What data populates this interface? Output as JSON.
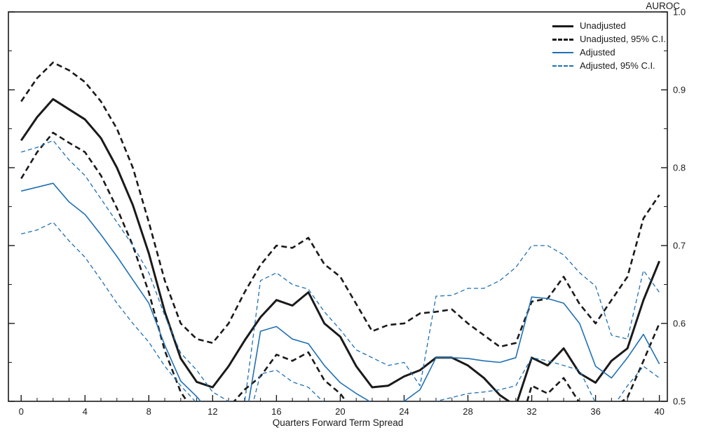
{
  "chart_data": {
    "type": "line",
    "title": "",
    "ylabel": "AUROC",
    "xlabel": "Quarters Forward Term Spread",
    "xlim": [
      -0.8,
      40.5
    ],
    "ylim": [
      0.5,
      1.0
    ],
    "grid": false,
    "legend_position": "top-right-inside",
    "axis_color": "#1a1a1a",
    "x_ticks_major": [
      0,
      4,
      8,
      12,
      16,
      20,
      24,
      28,
      32,
      36,
      40
    ],
    "x_tick_labels": [
      "0",
      "4",
      "8",
      "12",
      "16",
      "20",
      "24",
      "28",
      "32",
      "36",
      "40"
    ],
    "x_tick_step_minor": 1,
    "y_ticks_major": [
      0.5,
      0.6,
      0.7,
      0.8,
      0.9,
      1.0
    ],
    "y_tick_labels": [
      "0.5",
      "0.6",
      "0.7",
      "0.8",
      "0.9",
      "1.0"
    ],
    "y_ticks_minor": [
      0.55,
      0.65,
      0.75,
      0.85,
      0.95
    ],
    "x": [
      0,
      1,
      2,
      3,
      4,
      5,
      6,
      7,
      8,
      9,
      10,
      11,
      12,
      13,
      14,
      15,
      16,
      17,
      18,
      19,
      20,
      21,
      22,
      23,
      24,
      25,
      26,
      27,
      28,
      29,
      30,
      31,
      32,
      33,
      34,
      35,
      36,
      37,
      38,
      39,
      40
    ],
    "series": [
      {
        "name": "Unadjusted",
        "color": "#1a1a1a",
        "width": 3,
        "dash": null,
        "values": [
          0.835,
          0.865,
          0.888,
          0.875,
          0.862,
          0.838,
          0.8,
          0.752,
          0.69,
          0.615,
          0.555,
          0.525,
          0.518,
          0.545,
          0.578,
          0.608,
          0.63,
          0.623,
          0.64,
          0.6,
          0.583,
          0.545,
          0.518,
          0.52,
          0.532,
          0.54,
          0.556,
          0.556,
          0.546,
          0.53,
          0.508,
          0.494,
          0.556,
          0.546,
          0.568,
          0.536,
          0.524,
          0.552,
          0.568,
          0.63,
          0.68
        ]
      },
      {
        "name": "Unadjusted 95% C.I. upper",
        "color": "#1a1a1a",
        "width": 2.6,
        "dash": "8 5",
        "values": [
          0.885,
          0.915,
          0.935,
          0.925,
          0.91,
          0.885,
          0.85,
          0.8,
          0.73,
          0.655,
          0.6,
          0.58,
          0.575,
          0.6,
          0.64,
          0.675,
          0.7,
          0.697,
          0.71,
          0.676,
          0.66,
          0.625,
          0.59,
          0.598,
          0.6,
          0.613,
          0.615,
          0.618,
          0.6,
          0.585,
          0.57,
          0.575,
          0.628,
          0.632,
          0.66,
          0.625,
          0.6,
          0.63,
          0.66,
          0.735,
          0.765
        ]
      },
      {
        "name": "Unadjusted 95% C.I. lower",
        "color": "#1a1a1a",
        "width": 2.6,
        "dash": "8 5",
        "values": [
          0.786,
          0.82,
          0.845,
          0.832,
          0.82,
          0.79,
          0.748,
          0.7,
          0.64,
          0.565,
          0.512,
          0.482,
          0.47,
          0.492,
          0.515,
          0.532,
          0.56,
          0.552,
          0.563,
          0.527,
          0.51,
          0.482,
          0.462,
          0.463,
          0.47,
          0.48,
          0.492,
          0.492,
          0.483,
          0.47,
          0.458,
          0.45,
          0.52,
          0.51,
          0.53,
          0.498,
          0.47,
          0.49,
          0.505,
          0.552,
          0.6
        ]
      },
      {
        "name": "Adjusted",
        "color": "#2070b4",
        "width": 1.6,
        "dash": null,
        "values": [
          0.77,
          0.775,
          0.78,
          0.756,
          0.74,
          0.714,
          0.686,
          0.656,
          0.626,
          0.572,
          0.526,
          0.506,
          0.482,
          0.47,
          0.468,
          0.59,
          0.596,
          0.58,
          0.574,
          0.546,
          0.524,
          0.51,
          0.498,
          0.49,
          0.5,
          0.515,
          0.556,
          0.556,
          0.555,
          0.552,
          0.55,
          0.556,
          0.634,
          0.632,
          0.626,
          0.6,
          0.545,
          0.53,
          0.556,
          0.586,
          0.548
        ]
      },
      {
        "name": "Adjusted 95% C.I. upper",
        "color": "#2070b4",
        "width": 1.3,
        "dash": "6 4",
        "values": [
          0.82,
          0.826,
          0.835,
          0.81,
          0.79,
          0.76,
          0.73,
          0.7,
          0.665,
          0.61,
          0.562,
          0.54,
          0.512,
          0.5,
          0.498,
          0.655,
          0.665,
          0.65,
          0.644,
          0.615,
          0.592,
          0.566,
          0.556,
          0.546,
          0.55,
          0.52,
          0.635,
          0.636,
          0.645,
          0.645,
          0.655,
          0.672,
          0.7,
          0.7,
          0.688,
          0.665,
          0.648,
          0.585,
          0.58,
          0.668,
          0.64
        ]
      },
      {
        "name": "Adjusted 95% C.I. lower",
        "color": "#2070b4",
        "width": 1.3,
        "dash": "6 4",
        "values": [
          0.715,
          0.72,
          0.73,
          0.706,
          0.685,
          0.656,
          0.626,
          0.6,
          0.576,
          0.545,
          0.52,
          0.498,
          0.47,
          0.458,
          0.456,
          0.535,
          0.54,
          0.525,
          0.518,
          0.498,
          0.486,
          0.475,
          0.465,
          0.458,
          0.462,
          0.47,
          0.5,
          0.505,
          0.51,
          0.512,
          0.515,
          0.52,
          0.556,
          0.552,
          0.546,
          0.54,
          0.498,
          0.49,
          0.52,
          0.545,
          0.53
        ]
      }
    ],
    "legend": [
      {
        "label": "Unadjusted",
        "color": "#1a1a1a",
        "width": 3,
        "dash": false
      },
      {
        "label": "Unadjusted, 95% C.I.",
        "color": "#1a1a1a",
        "width": 3,
        "dash": true
      },
      {
        "label": "Adjusted",
        "color": "#2070b4",
        "width": 1.6,
        "dash": false
      },
      {
        "label": "Adjusted, 95% C.I.",
        "color": "#2070b4",
        "width": 1.6,
        "dash": true
      }
    ]
  }
}
